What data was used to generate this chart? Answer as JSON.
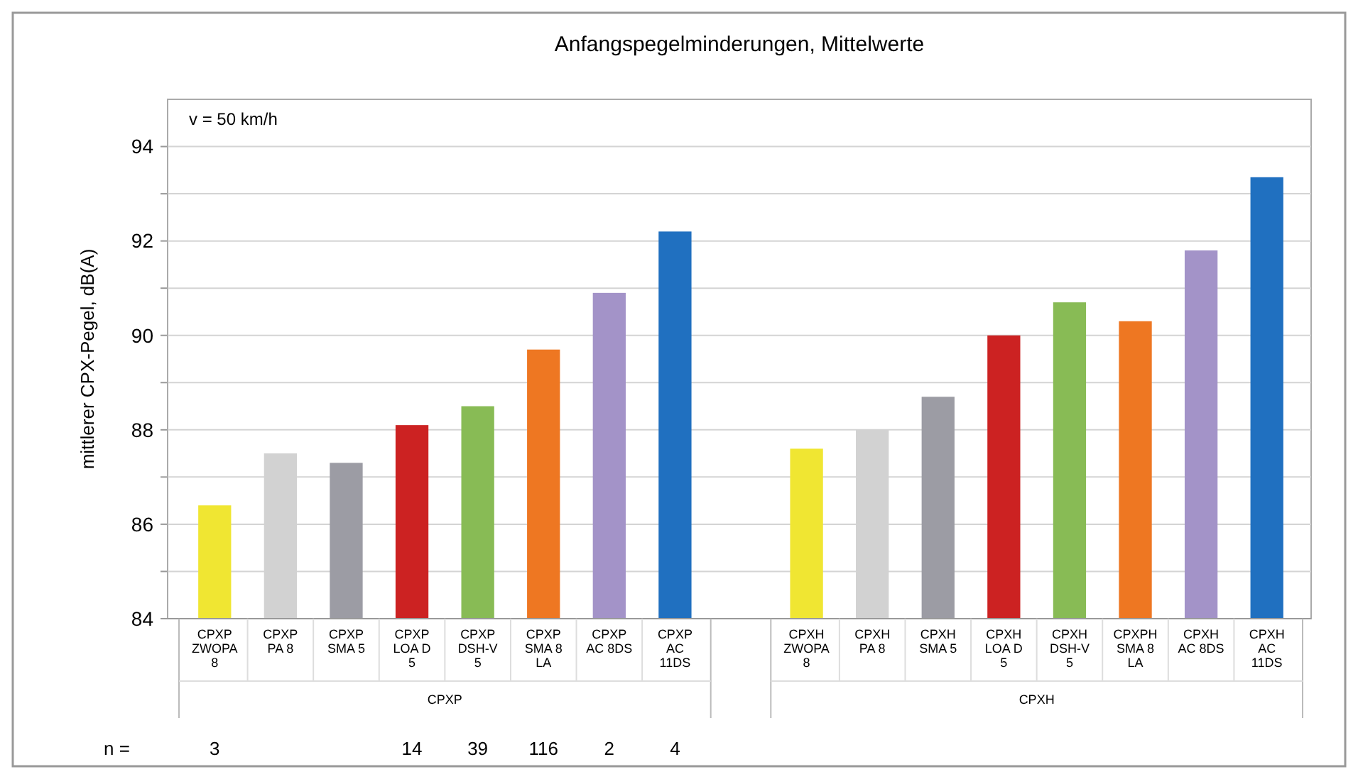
{
  "chart_data": {
    "type": "bar",
    "title": "Anfangspegelminderungen, Mittelwerte",
    "ylabel": "mittlerer CPX-Pegel, dB(A)",
    "categories": [
      "CPXP ZWOPA 8",
      "CPXP PA 8",
      "CPXP SMA 5",
      "CPXP LOA D 5",
      "CPXP DSH-V 5",
      "CPXP SMA 8 LA",
      "CPXP AC 8DS",
      "CPXP AC 11DS",
      null,
      "CPXH ZWOPA 8",
      "CPXH PA 8",
      "CPXH SMA 5",
      "CPXH LOA D 5",
      "CPXH DSH-V 5",
      "CPXPH SMA 8 LA",
      "CPXH AC 8DS",
      "CPXH AC 11DS"
    ],
    "values": [
      86.4,
      87.5,
      87.3,
      88.1,
      88.5,
      89.7,
      90.9,
      92.2,
      null,
      87.6,
      88.0,
      88.7,
      90.0,
      90.7,
      90.3,
      91.8,
      93.35
    ],
    "colors": [
      "#f0e632",
      "#d2d2d2",
      "#9c9ca4",
      "#cc2222",
      "#88bb55",
      "#ee7722",
      "#a393c8",
      "#2070c0",
      null,
      "#f0e632",
      "#d2d2d2",
      "#9c9ca4",
      "#cc2222",
      "#88bb55",
      "#ee7722",
      "#a393c8",
      "#2070c0"
    ],
    "ylim": [
      84,
      95
    ],
    "yticks": [
      84,
      {
        "value": 85,
        "label": null
      },
      86,
      {
        "value": 87,
        "label": null
      },
      88,
      {
        "value": 89,
        "label": null
      },
      90,
      {
        "value": 91,
        "label": null
      },
      92,
      {
        "value": 93,
        "label": null
      },
      94
    ],
    "grid": "y",
    "annotations": [
      "v = 50 km/h",
      "CPXP",
      "CPXH",
      "n =",
      "3",
      "14",
      "39",
      "116",
      "2",
      "4"
    ]
  }
}
